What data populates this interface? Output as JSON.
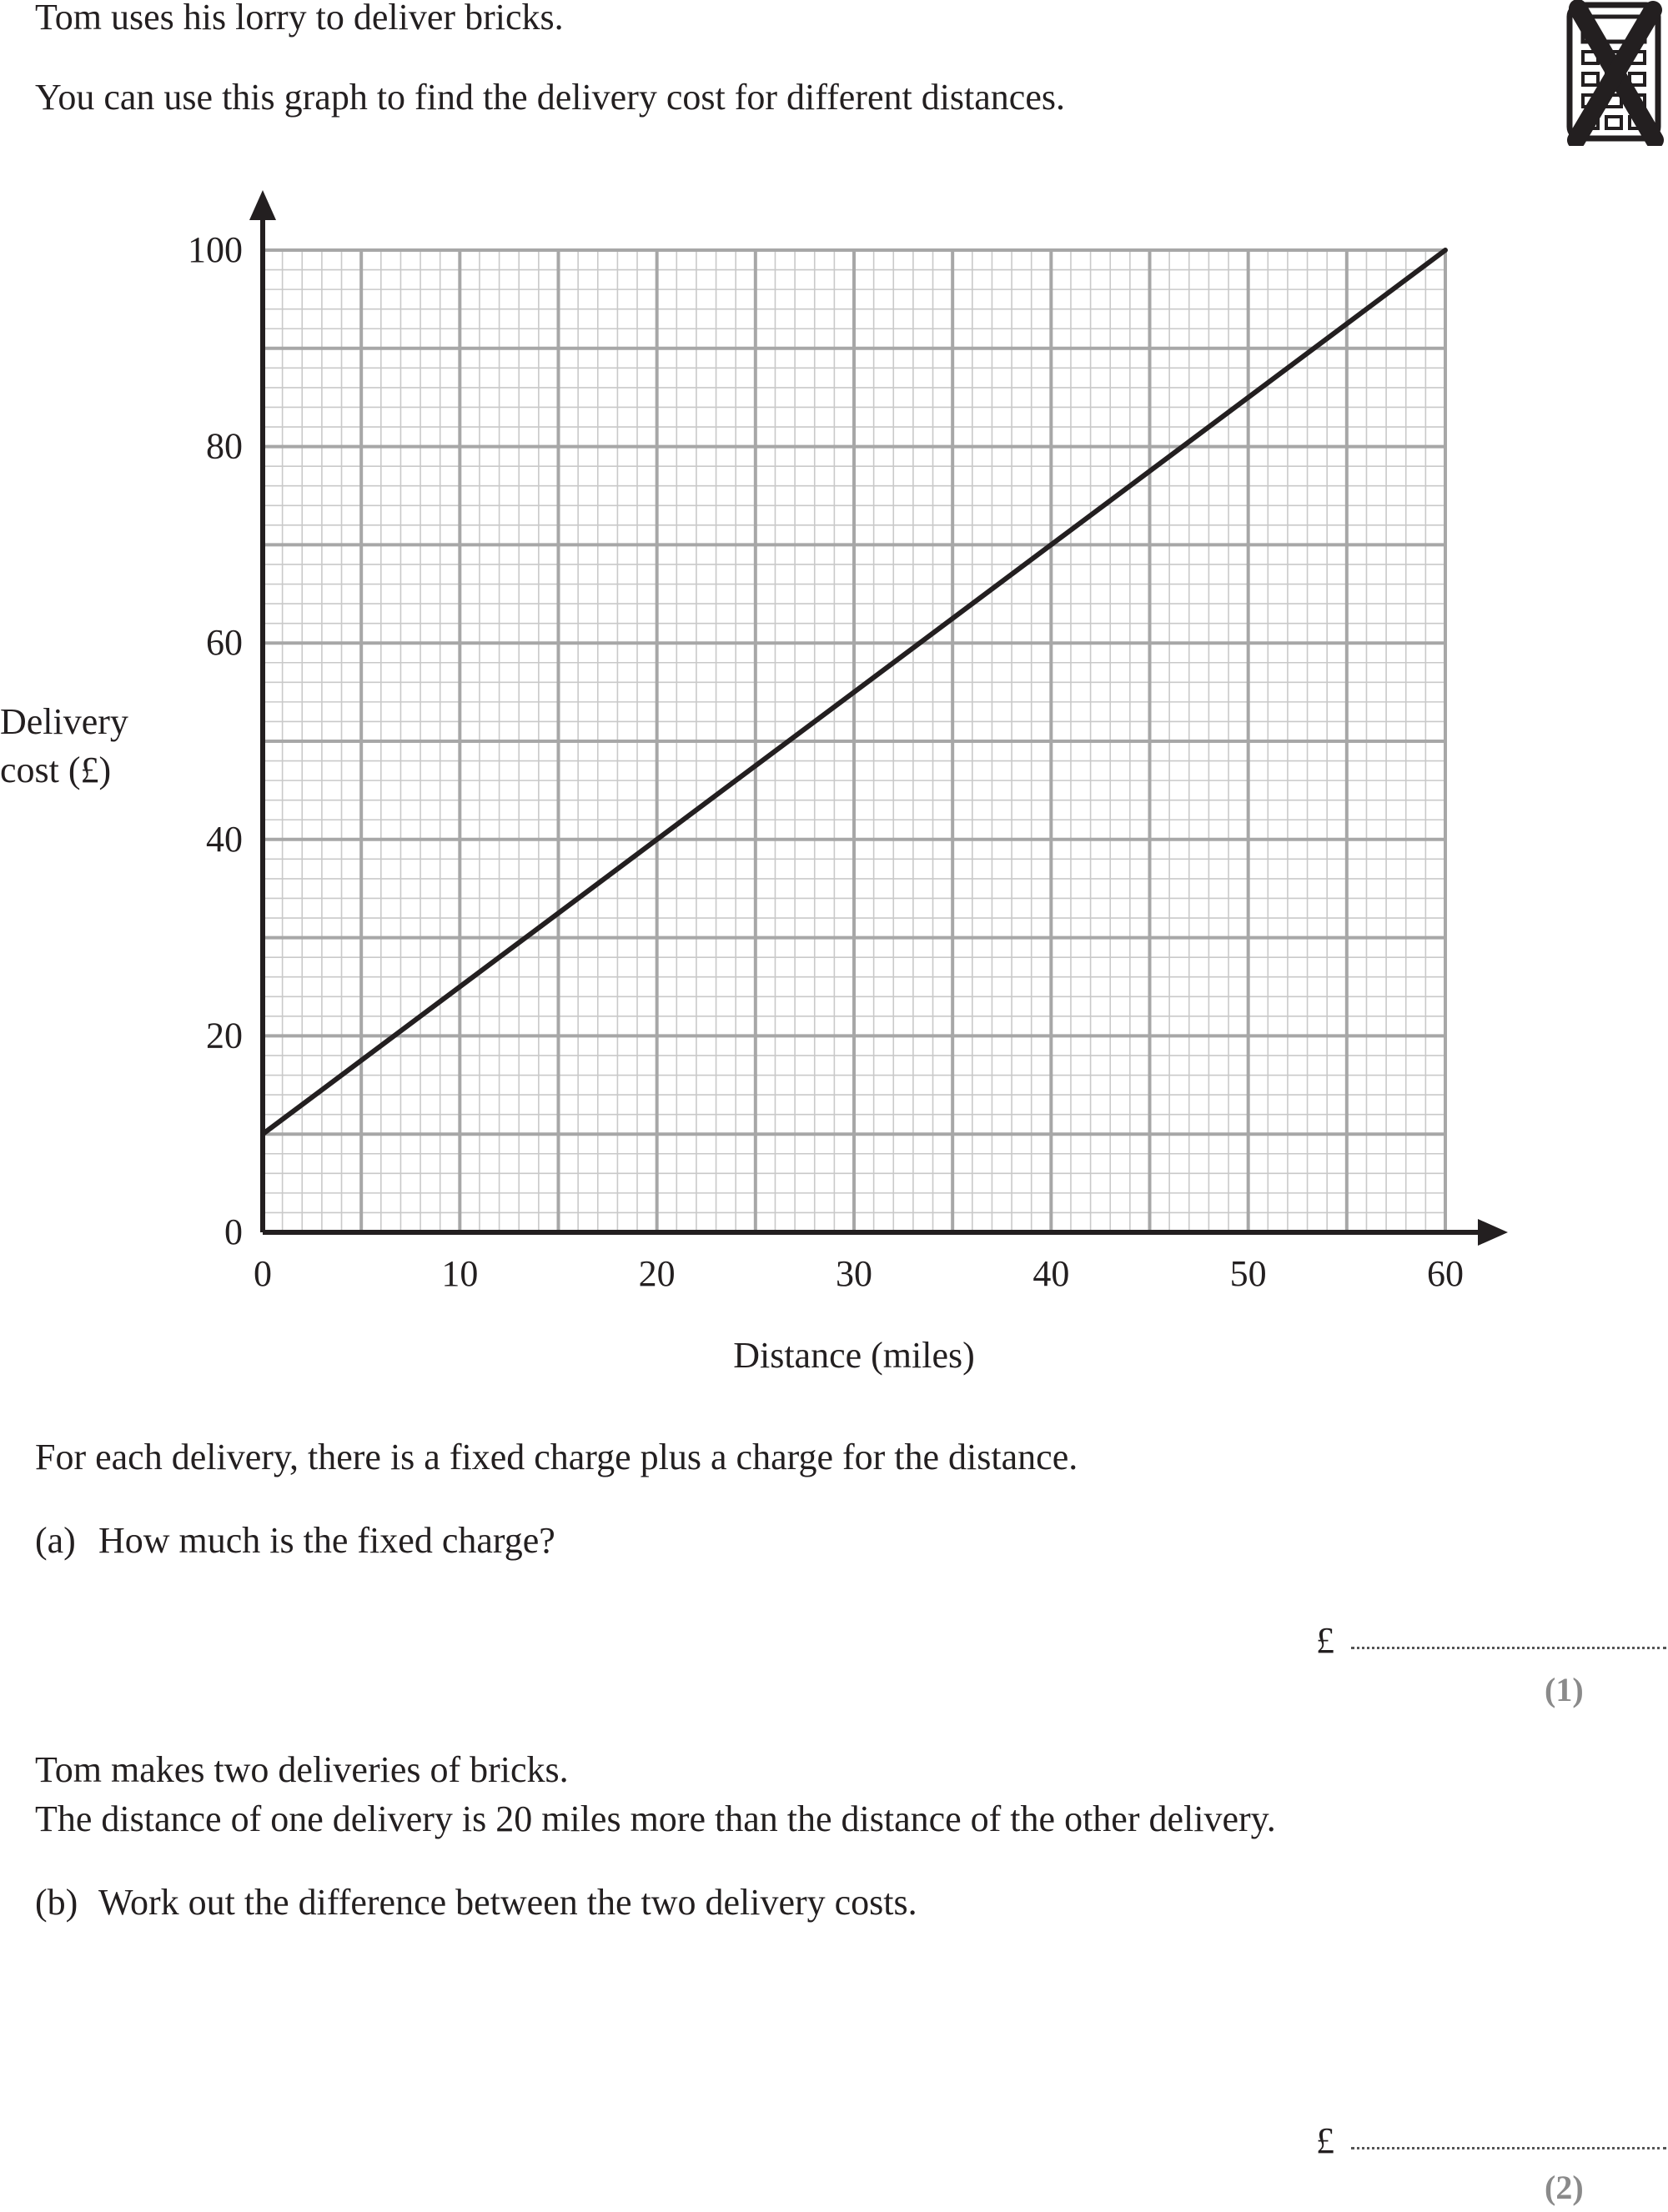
{
  "intro": {
    "line1": "Tom uses his lorry to deliver bricks.",
    "line2": "You can use this graph to find the delivery cost for different distances."
  },
  "calculator_notice": {
    "icon": "no-calculator-icon"
  },
  "chart_data": {
    "type": "line",
    "xlabel": "Distance (miles)",
    "ylabel_lines": [
      "Delivery",
      "cost (£)"
    ],
    "xlim": [
      0,
      60
    ],
    "ylim": [
      0,
      100
    ],
    "x_ticks": [
      "0",
      "10",
      "20",
      "30",
      "40",
      "50",
      "60"
    ],
    "y_ticks": [
      "0",
      "20",
      "40",
      "60",
      "80",
      "100"
    ],
    "grid": true,
    "series": [
      {
        "x": [
          0,
          60
        ],
        "y": [
          10,
          100
        ]
      }
    ]
  },
  "statement": "For each delivery, there is a fixed charge plus a charge for the distance.",
  "part_a": {
    "label": "(a)",
    "question": "How much is the fixed charge?",
    "currency": "£",
    "marks": "(1)"
  },
  "scenario": {
    "line1": "Tom makes two deliveries of bricks.",
    "line2": "The distance of one delivery is 20 miles more than the distance of the other delivery."
  },
  "part_b": {
    "label": "(b)",
    "question": "Work out the difference between the two delivery costs.",
    "currency": "£",
    "marks": "(2)"
  }
}
